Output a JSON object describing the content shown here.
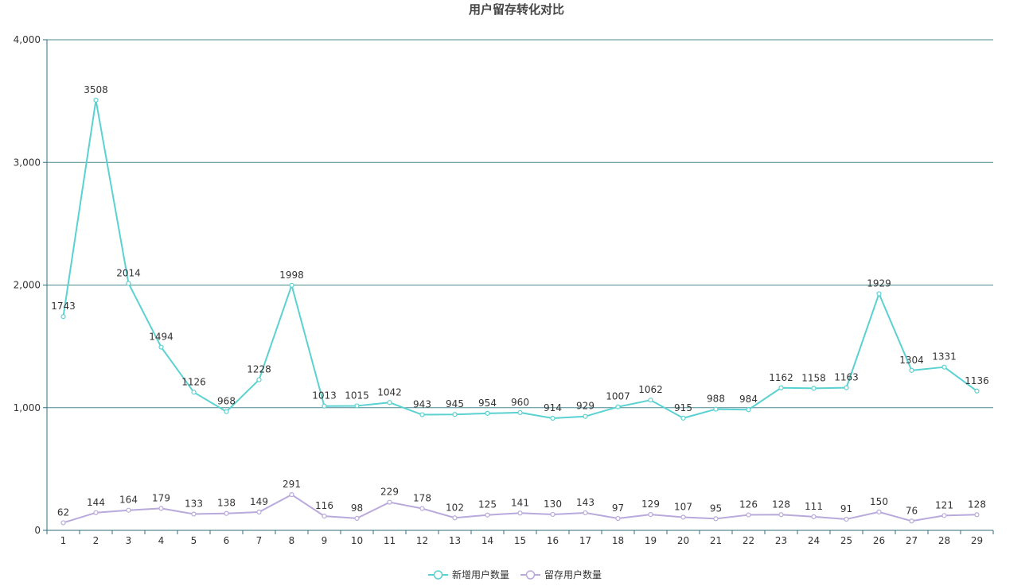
{
  "chart_data": {
    "type": "line",
    "title": "用户留存转化对比",
    "xlabel": "",
    "ylabel": "",
    "categories": [
      "1",
      "2",
      "3",
      "4",
      "5",
      "6",
      "7",
      "8",
      "9",
      "10",
      "11",
      "12",
      "13",
      "14",
      "15",
      "16",
      "17",
      "18",
      "19",
      "20",
      "21",
      "22",
      "23",
      "24",
      "25",
      "26",
      "27",
      "28",
      "29"
    ],
    "ylim": [
      0,
      4000
    ],
    "yticks": [
      0,
      1000,
      2000,
      3000,
      4000
    ],
    "ytick_labels": [
      "0",
      "1,000",
      "2,000",
      "3,000",
      "4,000"
    ],
    "grid": true,
    "legend_position": "bottom-center",
    "series": [
      {
        "name": "新增用户数量",
        "color": "#5bd1d1",
        "values": [
          1743,
          3508,
          2014,
          1494,
          1126,
          968,
          1228,
          1998,
          1013,
          1015,
          1042,
          943,
          945,
          954,
          960,
          914,
          929,
          1007,
          1062,
          915,
          988,
          984,
          1162,
          1158,
          1163,
          1929,
          1304,
          1331,
          1136
        ]
      },
      {
        "name": "留存用户数量",
        "color": "#b9a9dc",
        "values": [
          62,
          144,
          164,
          179,
          133,
          138,
          149,
          291,
          116,
          98,
          229,
          178,
          102,
          125,
          141,
          130,
          143,
          97,
          129,
          107,
          95,
          126,
          128,
          111,
          91,
          150,
          76,
          121,
          128
        ]
      }
    ]
  },
  "colors": {
    "axis": "#2f6f7a",
    "grid": "#4a8a90",
    "text": "#333333"
  }
}
